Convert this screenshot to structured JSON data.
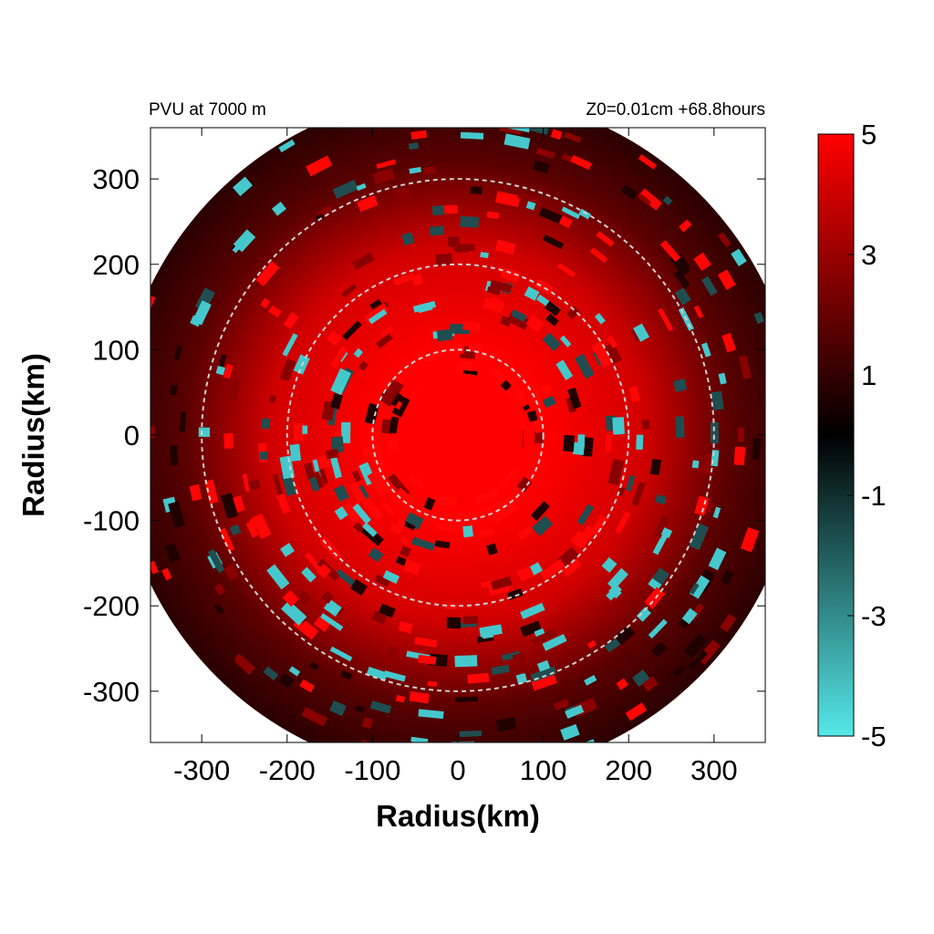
{
  "chart_data": {
    "type": "heatmap",
    "title_left": "PVU at  7000 m",
    "title_right": "Z0=0.01cm  +68.8hours",
    "xlabel": "Radius(km)",
    "ylabel": "Radius(km)",
    "xlim": [
      -360,
      360
    ],
    "ylim": [
      -360,
      360
    ],
    "x_ticks": [
      -300,
      -200,
      -100,
      0,
      100,
      200,
      300
    ],
    "y_ticks": [
      300,
      200,
      100,
      0,
      -100,
      -200,
      -300
    ],
    "x_tick_labels": [
      "-300",
      "-200",
      "-100",
      "0",
      "100",
      "200",
      "300"
    ],
    "y_tick_labels": [
      "300",
      "200",
      "100",
      "0",
      "-100",
      "-200",
      "-300"
    ],
    "domain_radius": 400,
    "reference_circles": [
      100,
      200,
      300
    ],
    "colorbar": {
      "min": -5,
      "max": 5,
      "ticks": [
        5,
        3,
        1,
        -1,
        -3,
        -5
      ],
      "tick_labels": [
        "5",
        "3",
        "1",
        "-1",
        "-3",
        "-5"
      ],
      "colors": [
        "#55e8e8",
        "#000000",
        "#ff0000"
      ]
    },
    "field_description": "Potential vorticity (PVU) with maximum (>5) inside r<100 km, red banded spiral structure with cyan negative patches at outer radii"
  }
}
